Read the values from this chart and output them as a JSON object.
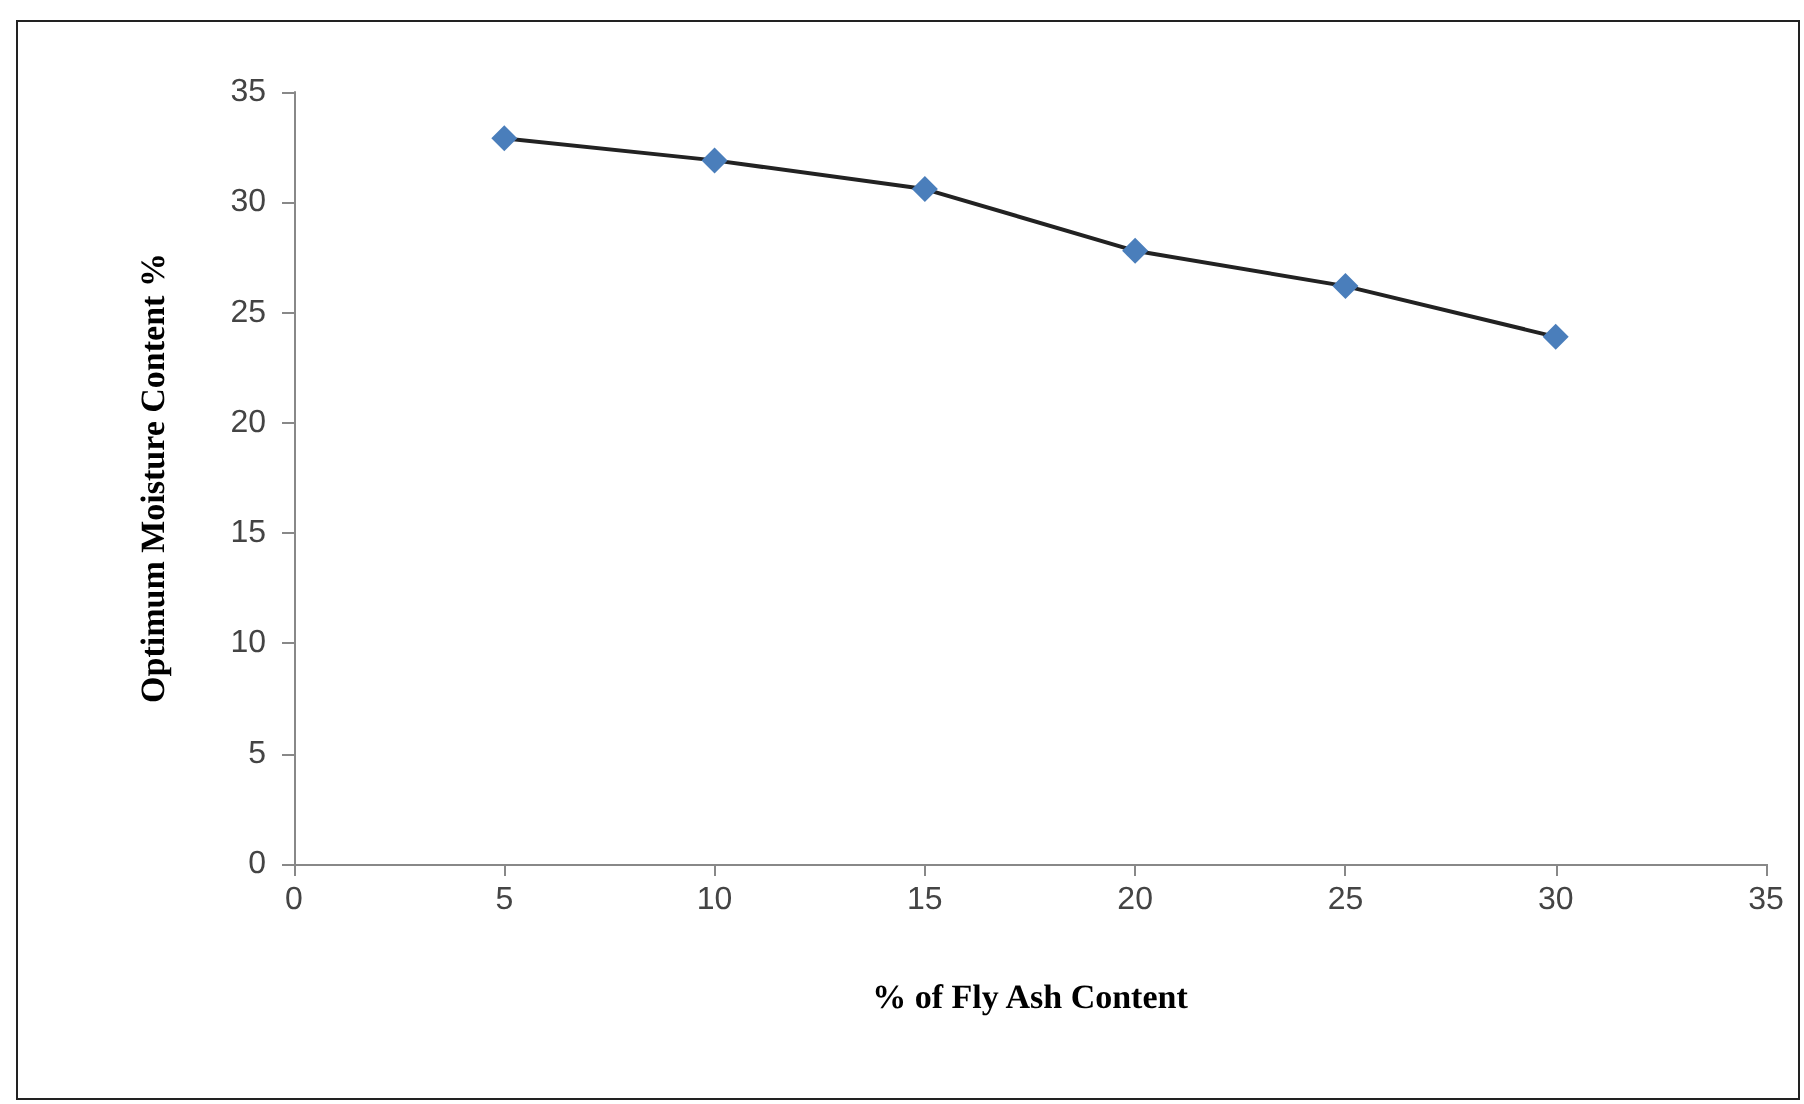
{
  "chart_data": {
    "type": "line",
    "xlabel": "% of Fly Ash Content",
    "ylabel": "Optimum Moisture Content %",
    "x": [
      5,
      10,
      15,
      20,
      25,
      30
    ],
    "series": [
      {
        "color": "#4a7ebb",
        "values": [
          32.9,
          31.9,
          30.6,
          27.8,
          26.2,
          23.9
        ]
      }
    ],
    "xlim": [
      0,
      35
    ],
    "xticks": [
      0,
      5,
      10,
      15,
      20,
      25,
      30,
      35
    ],
    "ylim": [
      0,
      35
    ],
    "yticks": [
      0,
      5,
      10,
      15,
      20,
      25,
      30,
      35
    ],
    "marker": "diamond",
    "line_style": "solid"
  }
}
